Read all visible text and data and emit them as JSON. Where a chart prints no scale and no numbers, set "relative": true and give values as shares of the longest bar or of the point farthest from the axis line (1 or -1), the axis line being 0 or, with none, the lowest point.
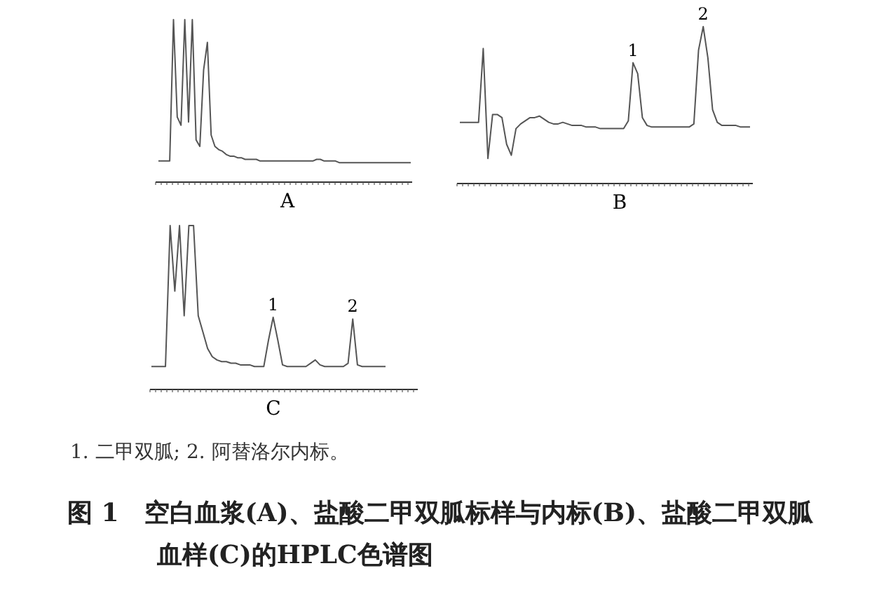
{
  "chart_data": [
    {
      "type": "line",
      "relative": true,
      "xlabel": "A",
      "color": "#555555",
      "categories": [
        null,
        null,
        null,
        null,
        null,
        null,
        null,
        null,
        null,
        null,
        null,
        null,
        null,
        null,
        null,
        null,
        null,
        null,
        null,
        null,
        null,
        null,
        null,
        null,
        null,
        null,
        null,
        null,
        null,
        null,
        null,
        null,
        null,
        null,
        null,
        null,
        null,
        null,
        null,
        null,
        null,
        null,
        null,
        null,
        null,
        null,
        null,
        null,
        null,
        null,
        null,
        null,
        null,
        null,
        null,
        null,
        null,
        null,
        null,
        null,
        null,
        null,
        null,
        null,
        null,
        null,
        null,
        null
      ],
      "values": [
        0.13,
        0.13,
        0.13,
        0.13,
        1,
        0.4,
        0.35,
        1,
        0.37,
        1,
        0.26,
        0.22,
        0.69,
        0.86,
        0.29,
        0.22,
        0.2,
        0.19,
        0.17,
        0.16,
        0.16,
        0.15,
        0.15,
        0.14,
        0.14,
        0.14,
        0.14,
        0.13,
        0.13,
        0.13,
        0.13,
        0.13,
        0.13,
        0.13,
        0.13,
        0.13,
        0.13,
        0.13,
        0.13,
        0.13,
        0.13,
        0.13,
        0.14,
        0.14,
        0.13,
        0.13,
        0.13,
        0.13,
        0.12,
        0.12,
        0.12,
        0.12,
        0.12,
        0.12,
        0.12,
        0.12,
        0.12,
        0.12,
        0.12,
        0.12,
        0.12,
        0.12,
        0.12,
        0.12,
        0.12,
        0.12,
        0.12,
        0.12
      ]
    },
    {
      "type": "line",
      "relative": true,
      "xlabel": "B",
      "color": "#555555",
      "annotations": [
        {
          "text": "1",
          "y": 0.77
        },
        {
          "text": "2",
          "y": 1
        }
      ],
      "categories": [
        null,
        null,
        null,
        null,
        null,
        null,
        null,
        null,
        null,
        null,
        null,
        null,
        null,
        null,
        null,
        null,
        null,
        null,
        null,
        null,
        null,
        null,
        null,
        null,
        null,
        null,
        null,
        null,
        null,
        null,
        null,
        null,
        null,
        null,
        null,
        null,
        null,
        null,
        null,
        null,
        null,
        null,
        null,
        null,
        null,
        null,
        null,
        null,
        null,
        null,
        null,
        null,
        null,
        null,
        null,
        null,
        null,
        null,
        null,
        null,
        null,
        null,
        null
      ],
      "values": [
        0.39,
        0.39,
        0.39,
        0.39,
        0.39,
        0.86,
        0.16,
        0.44,
        0.44,
        0.42,
        0.25,
        0.18,
        0.35,
        0.38,
        0.4,
        0.42,
        0.42,
        0.43,
        0.41,
        0.39,
        0.38,
        0.38,
        0.39,
        0.38,
        0.37,
        0.37,
        0.37,
        0.36,
        0.36,
        0.36,
        0.35,
        0.35,
        0.35,
        0.35,
        0.35,
        0.35,
        0.4,
        0.77,
        0.7,
        0.42,
        0.37,
        0.36,
        0.36,
        0.36,
        0.36,
        0.36,
        0.36,
        0.36,
        0.36,
        0.36,
        0.38,
        0.85,
        1,
        0.8,
        0.47,
        0.39,
        0.37,
        0.37,
        0.37,
        0.37,
        0.36,
        0.36,
        0.36
      ]
    },
    {
      "type": "line",
      "relative": true,
      "xlabel": "C",
      "color": "#555555",
      "annotations": [
        {
          "text": "1",
          "y": 0.44
        },
        {
          "text": "2",
          "y": 0.43
        }
      ],
      "categories": [
        null,
        null,
        null,
        null,
        null,
        null,
        null,
        null,
        null,
        null,
        null,
        null,
        null,
        null,
        null,
        null,
        null,
        null,
        null,
        null,
        null,
        null,
        null,
        null,
        null,
        null,
        null,
        null,
        null,
        null,
        null,
        null,
        null,
        null,
        null,
        null,
        null,
        null,
        null,
        null,
        null,
        null,
        null,
        null,
        null,
        null,
        null,
        null,
        null,
        null,
        null
      ],
      "values": [
        0.14,
        0.14,
        0.14,
        0.14,
        1,
        0.6,
        1,
        0.45,
        1,
        1,
        0.45,
        0.35,
        0.25,
        0.2,
        0.18,
        0.17,
        0.17,
        0.16,
        0.16,
        0.15,
        0.15,
        0.15,
        0.14,
        0.14,
        0.14,
        0.3,
        0.44,
        0.3,
        0.15,
        0.14,
        0.14,
        0.14,
        0.14,
        0.14,
        0.16,
        0.18,
        0.15,
        0.14,
        0.14,
        0.14,
        0.14,
        0.14,
        0.16,
        0.43,
        0.15,
        0.14,
        0.14,
        0.14,
        0.14,
        0.14,
        0.14
      ]
    },
    {
      "type": "other",
      "title": "图 1　空白血浆(A)、盐酸二甲双胍标样与内标(B)、盐酸二甲双胍血样(C)的HPLC色谱图",
      "annotations": [
        "1. 二甲双胍; 2. 阿替洛尔内标。"
      ]
    }
  ]
}
